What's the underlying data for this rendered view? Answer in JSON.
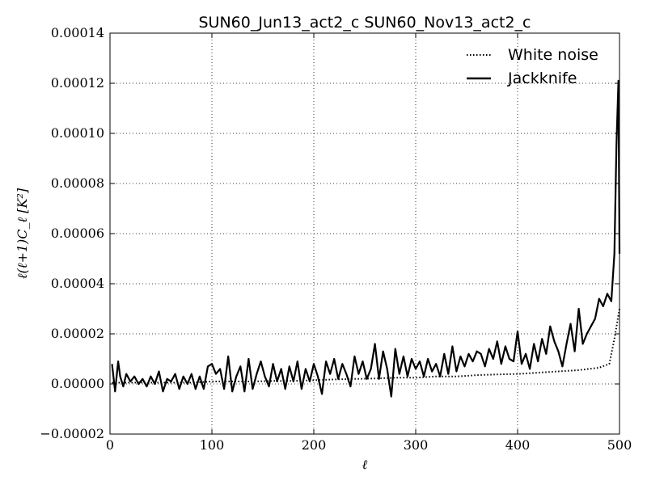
{
  "chart_data": {
    "type": "line",
    "title": "SUN60_Jun13_act2_c SUN60_Nov13_act2_c",
    "xlabel": "ℓ",
    "ylabel": "ℓ(ℓ+1)C_ℓ [K²]",
    "xlim": [
      0,
      500
    ],
    "ylim": [
      -2e-05,
      0.00014
    ],
    "xticks": [
      0,
      100,
      200,
      300,
      400,
      500
    ],
    "xtick_labels": [
      "0",
      "100",
      "200",
      "300",
      "400",
      "500"
    ],
    "yticks": [
      -2e-05,
      0,
      2e-05,
      4e-05,
      6e-05,
      8e-05,
      0.0001,
      0.00012,
      0.00014
    ],
    "ytick_labels": [
      "−0.00002",
      "0.00000",
      "0.00002",
      "0.00004",
      "0.00006",
      "0.00008",
      "0.00010",
      "0.00012",
      "0.00014"
    ],
    "grid": true,
    "legend_position": "top-right",
    "series": [
      {
        "name": "White noise",
        "style": "dotted",
        "color": "#000000",
        "x": [
          2,
          20,
          40,
          60,
          80,
          100,
          120,
          140,
          160,
          180,
          200,
          220,
          240,
          260,
          280,
          300,
          320,
          340,
          360,
          380,
          400,
          420,
          440,
          460,
          470,
          480,
          490,
          495,
          500
        ],
        "y": [
          5e-07,
          5e-07,
          5e-07,
          5e-07,
          5e-07,
          1e-06,
          1e-06,
          1e-06,
          1.2e-06,
          1.2e-06,
          1.5e-06,
          1.8e-06,
          2e-06,
          2.2e-06,
          2.5e-06,
          2.5e-06,
          3e-06,
          3e-06,
          3.5e-06,
          3.8e-06,
          4e-06,
          4.5e-06,
          5e-06,
          5.5e-06,
          6e-06,
          6.5e-06,
          8e-06,
          1.8e-05,
          3e-05
        ]
      },
      {
        "name": "Jackknife",
        "style": "solid",
        "color": "#000000",
        "x": [
          2,
          5,
          8,
          10,
          13,
          16,
          20,
          24,
          28,
          32,
          36,
          40,
          44,
          48,
          52,
          56,
          60,
          64,
          68,
          72,
          76,
          80,
          84,
          88,
          92,
          96,
          100,
          104,
          108,
          112,
          116,
          120,
          124,
          128,
          132,
          136,
          140,
          144,
          148,
          152,
          156,
          160,
          164,
          168,
          172,
          176,
          180,
          184,
          188,
          192,
          196,
          200,
          204,
          208,
          212,
          216,
          220,
          224,
          228,
          232,
          236,
          240,
          244,
          248,
          252,
          256,
          260,
          264,
          268,
          272,
          276,
          280,
          284,
          288,
          292,
          296,
          300,
          304,
          308,
          312,
          316,
          320,
          324,
          328,
          332,
          336,
          340,
          344,
          348,
          352,
          356,
          360,
          364,
          368,
          372,
          376,
          380,
          384,
          388,
          392,
          396,
          400,
          404,
          408,
          412,
          416,
          420,
          424,
          428,
          432,
          436,
          440,
          444,
          448,
          452,
          456,
          460,
          464,
          468,
          472,
          476,
          480,
          484,
          488,
          492,
          495,
          497,
          499,
          500
        ],
        "y": [
          8e-06,
          -3e-06,
          9e-06,
          3e-06,
          -1e-06,
          4e-06,
          1e-06,
          3e-06,
          0.0,
          2e-06,
          -1e-06,
          3e-06,
          0.0,
          5e-06,
          -3e-06,
          2e-06,
          1e-06,
          4e-06,
          -2e-06,
          3e-06,
          0.0,
          4e-06,
          -2e-06,
          3e-06,
          -2e-06,
          7e-06,
          8e-06,
          4e-06,
          6e-06,
          -2e-06,
          1.1e-05,
          -3e-06,
          3e-06,
          7e-06,
          -3e-06,
          1e-05,
          -2e-06,
          4e-06,
          9e-06,
          3e-06,
          -1e-06,
          8e-06,
          1e-06,
          6e-06,
          -2e-06,
          7e-06,
          1e-06,
          9e-06,
          -2e-06,
          6e-06,
          1e-06,
          8e-06,
          3e-06,
          -4e-06,
          9e-06,
          4e-06,
          1e-05,
          2e-06,
          8e-06,
          4e-06,
          -1e-06,
          1.1e-05,
          4e-06,
          9e-06,
          2e-06,
          6e-06,
          1.6e-05,
          2e-06,
          1.3e-05,
          6e-06,
          -5e-06,
          1.4e-05,
          4e-06,
          1.1e-05,
          3e-06,
          1e-05,
          6e-06,
          9e-06,
          3e-06,
          1e-05,
          5e-06,
          8e-06,
          3e-06,
          1.2e-05,
          4e-06,
          1.5e-05,
          5e-06,
          1.1e-05,
          7e-06,
          1.2e-05,
          9e-06,
          1.3e-05,
          1.2e-05,
          7e-06,
          1.4e-05,
          1e-05,
          1.7e-05,
          8e-06,
          1.5e-05,
          1e-05,
          9e-06,
          2.1e-05,
          8e-06,
          1.2e-05,
          6e-06,
          1.6e-05,
          9e-06,
          1.8e-05,
          1.2e-05,
          2.3e-05,
          1.7e-05,
          1.3e-05,
          7e-06,
          1.6e-05,
          2.4e-05,
          1.3e-05,
          3e-05,
          1.6e-05,
          2e-05,
          2.3e-05,
          2.6e-05,
          3.4e-05,
          3.1e-05,
          3.6e-05,
          3.3e-05,
          5.2e-05,
          9.5e-05,
          0.000121,
          5.2e-05
        ]
      }
    ]
  }
}
